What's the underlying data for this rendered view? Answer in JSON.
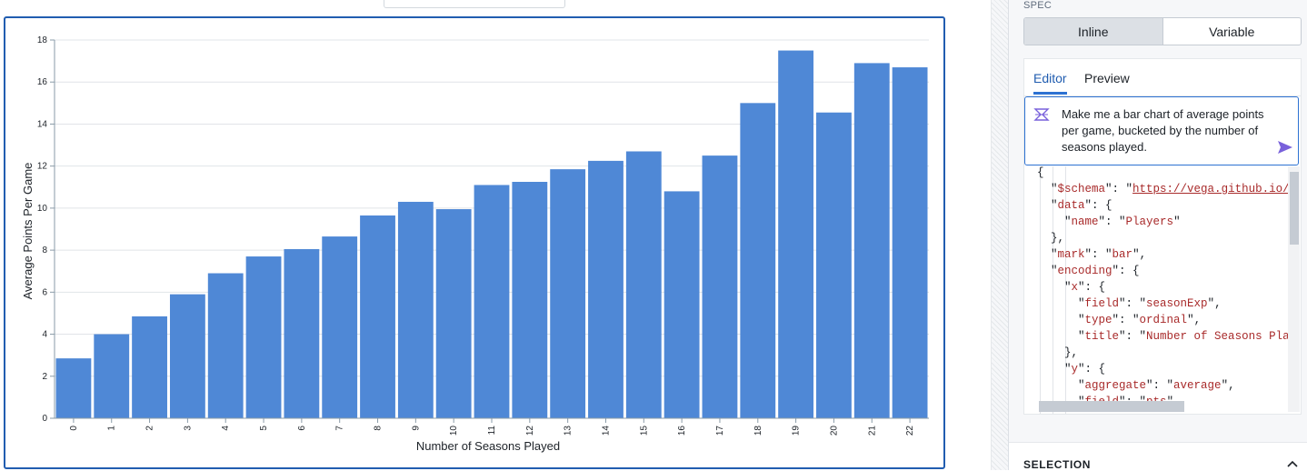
{
  "panel": {
    "spec_label": "SPEC",
    "segments": [
      "Inline",
      "Variable"
    ],
    "tabs": [
      "Editor",
      "Preview"
    ],
    "prompt_text": "Make me a bar chart of average points per game, bucketed by the number of seasons played.",
    "selection_label": "SELECTION",
    "code_lines": [
      "{",
      "  \"$schema\": \"https://vega.github.io/sch",
      "  \"data\": {",
      "    \"name\": \"Players\"",
      "  },",
      "  \"mark\": \"bar\",",
      "  \"encoding\": {",
      "    \"x\": {",
      "      \"field\": \"seasonExp\",",
      "      \"type\": \"ordinal\",",
      "      \"title\": \"Number of Seasons Played",
      "    },",
      "    \"y\": {",
      "      \"aggregate\": \"average\",",
      "      \"field\": \"pts\","
    ]
  },
  "colors": {
    "bar": "#4f88d6",
    "accent": "#2d72d2",
    "frame": "#215db0"
  },
  "chart_data": {
    "type": "bar",
    "categories": [
      "0",
      "1",
      "2",
      "3",
      "4",
      "5",
      "6",
      "7",
      "8",
      "9",
      "10",
      "11",
      "12",
      "13",
      "14",
      "15",
      "16",
      "17",
      "18",
      "19",
      "20",
      "21",
      "22"
    ],
    "values": [
      2.85,
      4.0,
      4.85,
      5.9,
      6.9,
      7.7,
      8.05,
      8.65,
      9.65,
      10.3,
      9.95,
      11.1,
      11.25,
      11.85,
      12.25,
      12.7,
      10.8,
      12.5,
      15.0,
      17.5,
      14.55,
      16.9,
      16.7
    ],
    "xlabel": "Number of Seasons Played",
    "ylabel": "Average Points Per Game",
    "ylim": [
      0,
      18
    ],
    "yticks": [
      "0",
      "2",
      "4",
      "6",
      "8",
      "10",
      "12",
      "14",
      "16",
      "18"
    ],
    "grid": true
  }
}
